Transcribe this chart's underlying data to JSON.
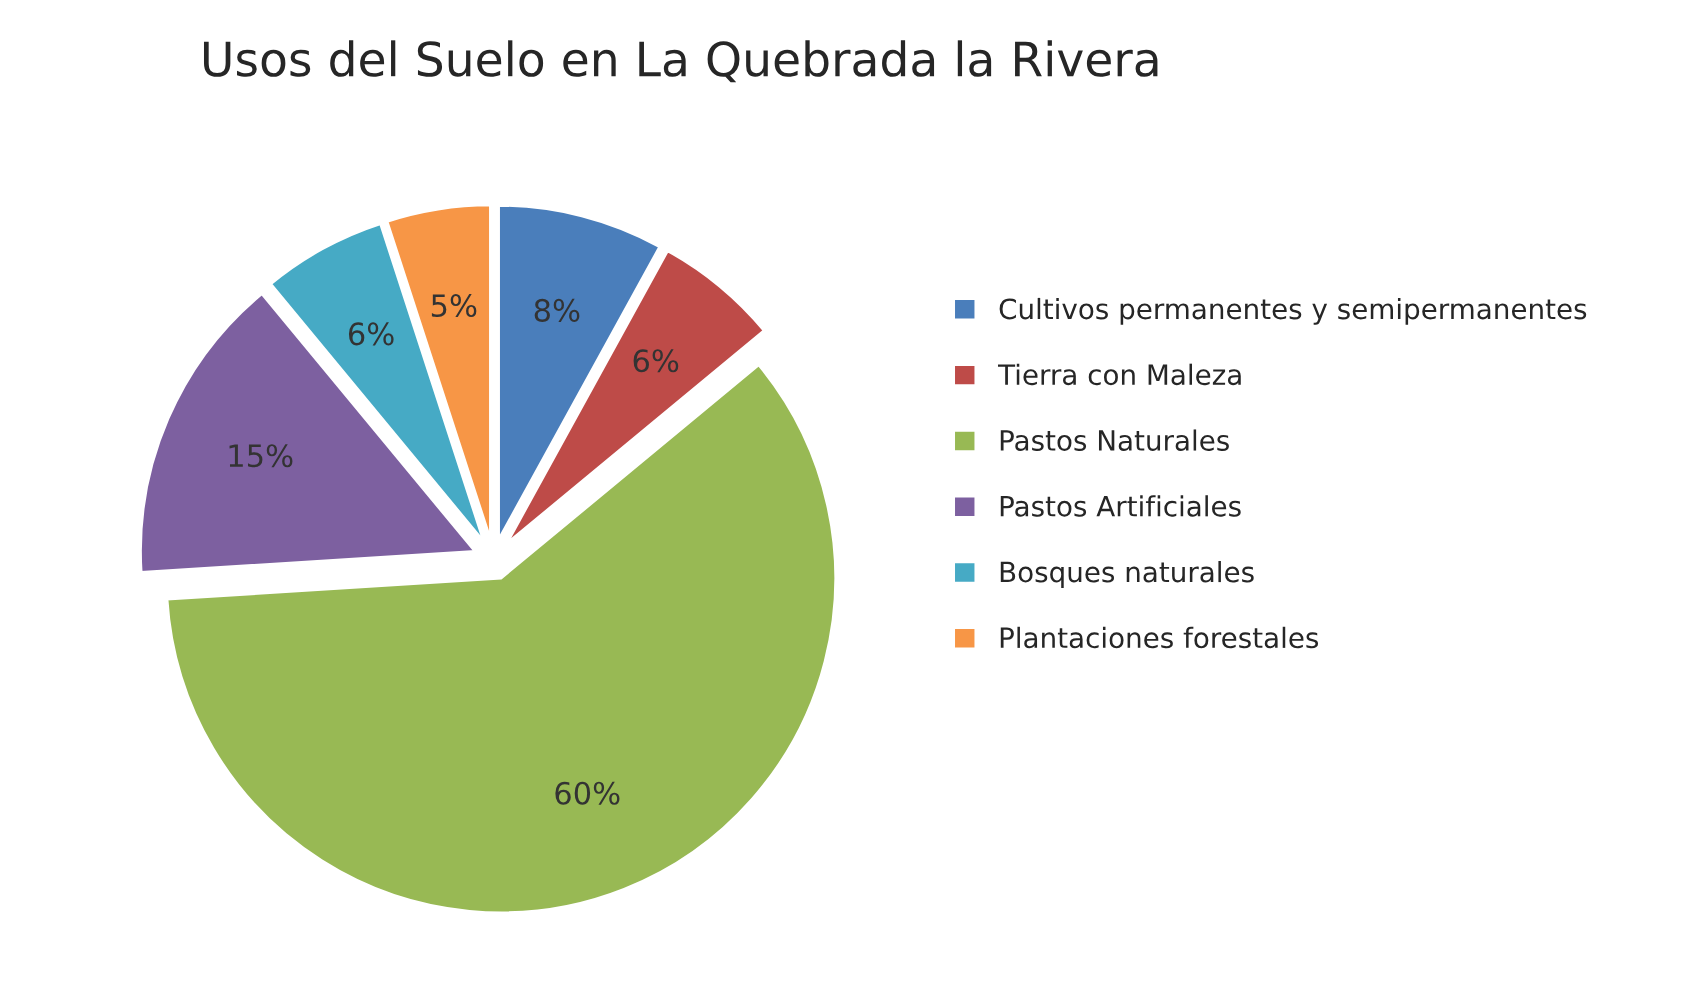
{
  "chart_data": {
    "type": "pie",
    "title": "Usos del Suelo en La Quebrada la Rivera",
    "categories": [
      "Cultivos permanentes y semipermanentes",
      "Tierra con Maleza",
      "Pastos Naturales",
      "Pastos Artificiales",
      "Bosques naturales",
      "Plantaciones forestales"
    ],
    "values": [
      8,
      6,
      60,
      15,
      6,
      5
    ],
    "value_labels": [
      "8%",
      "6%",
      "60%",
      "15%",
      "6%",
      "5%"
    ],
    "colors": [
      "#4a7ebb",
      "#be4b48",
      "#98b954",
      "#7d60a0",
      "#46aac5",
      "#f79646"
    ],
    "legend": "right"
  }
}
